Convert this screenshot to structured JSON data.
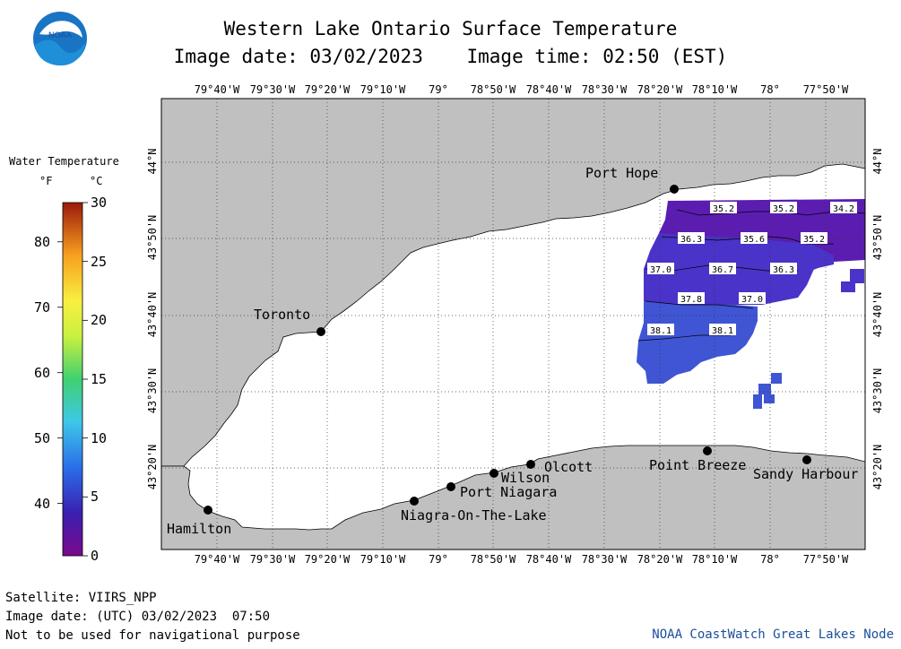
{
  "title": "Western Lake Ontario Surface Temperature",
  "image_date_label": "Image date: 03/02/2023",
  "image_time_label": "Image time: 02:50 (EST)",
  "logo_text": "NOAA",
  "lon_labels": [
    "79°40'W",
    "79°30'W",
    "79°20'W",
    "79°10'W",
    "79°",
    "78°50'W",
    "78°40'W",
    "78°30'W",
    "78°20'W",
    "78°10'W",
    "78°",
    "77°50'W"
  ],
  "lat_labels": [
    "44°N",
    "43°50'N",
    "43°40'N",
    "43°30'N",
    "43°20'N"
  ],
  "legend": {
    "title": "Water Temperature",
    "unit_f": "°F",
    "unit_c": "°C",
    "f_ticks": [
      "80",
      "70",
      "60",
      "50",
      "40"
    ],
    "c_ticks": [
      "30",
      "25",
      "20",
      "15",
      "10",
      "5",
      "0"
    ]
  },
  "cities": [
    {
      "name": "Port Hope"
    },
    {
      "name": "Toronto"
    },
    {
      "name": "Hamilton"
    },
    {
      "name": "Niagra-On-The-Lake"
    },
    {
      "name": "Port Niagara"
    },
    {
      "name": "Wilson"
    },
    {
      "name": "Olcott"
    },
    {
      "name": "Point Breeze"
    },
    {
      "name": "Sandy Harbour"
    }
  ],
  "contour_labels": [
    "35.2",
    "35.2",
    "34.2",
    "36.3",
    "35.6",
    "35.2",
    "37.0",
    "36.7",
    "36.3",
    "37.8",
    "37.0",
    "38.1",
    "38.1"
  ],
  "colors": {
    "land": "#c0c0c0",
    "water": "#ffffff",
    "grid": "#555555",
    "temp_34": "#5a1db0",
    "temp_36": "#4a33c8",
    "temp_38": "#3f55d4"
  },
  "footer": {
    "satellite": "Satellite: VIIRS_NPP",
    "utc_date": "Image date: (UTC) 03/02/2023  07:50",
    "disclaimer": "Not to be used for navigational purpose",
    "credit": "NOAA CoastWatch Great Lakes Node"
  }
}
